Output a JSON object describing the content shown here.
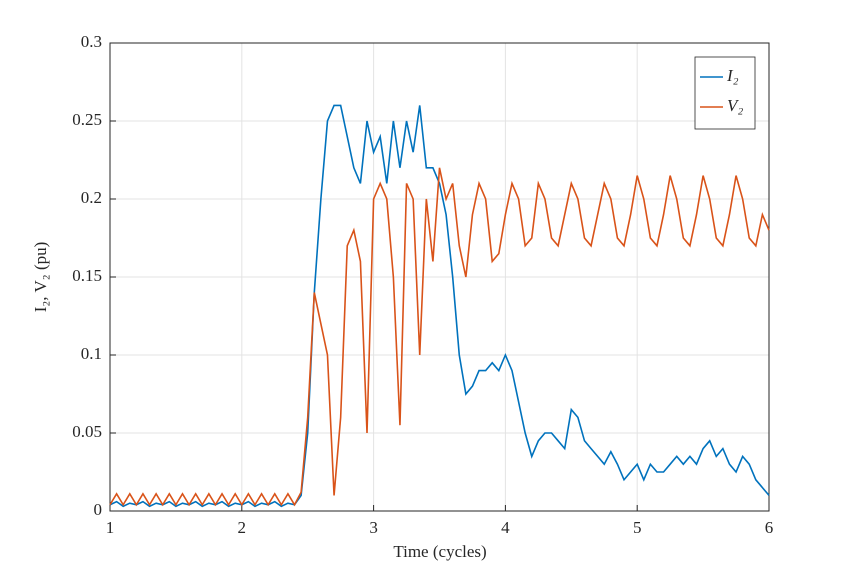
{
  "chart_data": {
    "type": "line",
    "xlabel": "Time (cycles)",
    "ylabel": "I₂, V₂ (pu)",
    "xlim": [
      1,
      6
    ],
    "ylim": [
      0,
      0.3
    ],
    "xticks": [
      1,
      2,
      3,
      4,
      5,
      6
    ],
    "yticks": [
      0,
      0.05,
      0.1,
      0.15,
      0.2,
      0.25,
      0.3
    ],
    "grid": true,
    "legend": "northeast",
    "x": [
      1,
      1.05,
      1.1,
      1.15,
      1.2,
      1.25,
      1.3,
      1.35,
      1.4,
      1.45,
      1.5,
      1.55,
      1.6,
      1.65,
      1.7,
      1.75,
      1.8,
      1.85,
      1.9,
      1.95,
      2,
      2.05,
      2.1,
      2.15,
      2.2,
      2.25,
      2.3,
      2.35,
      2.4,
      2.45,
      2.5,
      2.55,
      2.6,
      2.65,
      2.7,
      2.75,
      2.8,
      2.85,
      2.9,
      2.95,
      3,
      3.05,
      3.1,
      3.15,
      3.2,
      3.25,
      3.3,
      3.35,
      3.4,
      3.45,
      3.5,
      3.55,
      3.6,
      3.65,
      3.7,
      3.75,
      3.8,
      3.85,
      3.9,
      3.95,
      4,
      4.05,
      4.1,
      4.15,
      4.2,
      4.25,
      4.3,
      4.35,
      4.4,
      4.45,
      4.5,
      4.55,
      4.6,
      4.65,
      4.7,
      4.75,
      4.8,
      4.85,
      4.9,
      4.95,
      5,
      5.05,
      5.1,
      5.15,
      5.2,
      5.25,
      5.3,
      5.35,
      5.4,
      5.45,
      5.5,
      5.55,
      5.6,
      5.65,
      5.7,
      5.75,
      5.8,
      5.85,
      5.9,
      5.95,
      6
    ],
    "series": [
      {
        "name": "I₂",
        "color": "#0072BD",
        "values": [
          0.004,
          0.006,
          0.003,
          0.005,
          0.004,
          0.006,
          0.003,
          0.005,
          0.004,
          0.006,
          0.003,
          0.005,
          0.004,
          0.006,
          0.003,
          0.005,
          0.004,
          0.006,
          0.003,
          0.005,
          0.004,
          0.006,
          0.003,
          0.005,
          0.004,
          0.006,
          0.003,
          0.005,
          0.004,
          0.01,
          0.05,
          0.14,
          0.2,
          0.25,
          0.26,
          0.26,
          0.24,
          0.22,
          0.21,
          0.25,
          0.23,
          0.24,
          0.21,
          0.25,
          0.22,
          0.25,
          0.23,
          0.26,
          0.22,
          0.22,
          0.21,
          0.19,
          0.15,
          0.1,
          0.075,
          0.08,
          0.09,
          0.09,
          0.095,
          0.09,
          0.1,
          0.09,
          0.07,
          0.05,
          0.035,
          0.045,
          0.05,
          0.05,
          0.045,
          0.04,
          0.065,
          0.06,
          0.045,
          0.04,
          0.035,
          0.03,
          0.038,
          0.03,
          0.02,
          0.025,
          0.03,
          0.02,
          0.03,
          0.025,
          0.025,
          0.03,
          0.035,
          0.03,
          0.035,
          0.03,
          0.04,
          0.045,
          0.035,
          0.04,
          0.03,
          0.025,
          0.035,
          0.03,
          0.02,
          0.015,
          0.01
        ]
      },
      {
        "name": "V₂",
        "color": "#D95319",
        "values": [
          0.004,
          0.011,
          0.004,
          0.011,
          0.004,
          0.011,
          0.004,
          0.011,
          0.004,
          0.011,
          0.004,
          0.011,
          0.004,
          0.011,
          0.004,
          0.011,
          0.004,
          0.011,
          0.004,
          0.011,
          0.004,
          0.011,
          0.004,
          0.011,
          0.004,
          0.011,
          0.004,
          0.011,
          0.004,
          0.012,
          0.06,
          0.14,
          0.12,
          0.1,
          0.01,
          0.06,
          0.17,
          0.18,
          0.16,
          0.05,
          0.2,
          0.21,
          0.2,
          0.15,
          0.055,
          0.21,
          0.2,
          0.1,
          0.2,
          0.16,
          0.22,
          0.2,
          0.21,
          0.17,
          0.15,
          0.19,
          0.21,
          0.2,
          0.16,
          0.165,
          0.19,
          0.21,
          0.2,
          0.17,
          0.175,
          0.21,
          0.2,
          0.175,
          0.17,
          0.19,
          0.21,
          0.2,
          0.175,
          0.17,
          0.19,
          0.21,
          0.2,
          0.175,
          0.17,
          0.19,
          0.215,
          0.2,
          0.175,
          0.17,
          0.19,
          0.215,
          0.2,
          0.175,
          0.17,
          0.19,
          0.215,
          0.2,
          0.175,
          0.17,
          0.19,
          0.215,
          0.2,
          0.175,
          0.17,
          0.19,
          0.18
        ]
      }
    ]
  }
}
